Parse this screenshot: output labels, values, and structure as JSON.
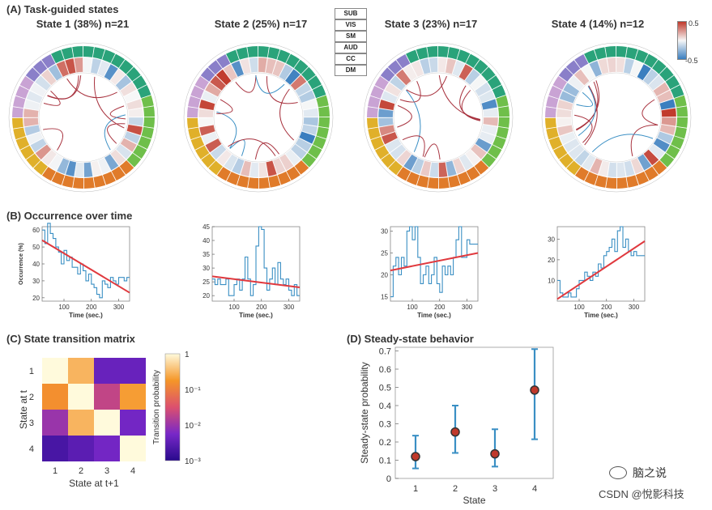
{
  "panels": {
    "a": "(A) Task-guided states",
    "b": "(B) Occurrence over time",
    "c": "(C) State transition matrix",
    "d": "(D) Steady-state behavior"
  },
  "states": [
    {
      "title": "State 1 (38%) n=21"
    },
    {
      "title": "State 2 (25%) n=17"
    },
    {
      "title": "State 3 (23%) n=17"
    },
    {
      "title": "State 4 (14%) n=12"
    }
  ],
  "network_legend": [
    {
      "label": "SUB",
      "color": "#c9a3d4"
    },
    {
      "label": "VIS",
      "color": "#6fbf4a"
    },
    {
      "label": "SM",
      "color": "#e07b2a"
    },
    {
      "label": "AUD",
      "color": "#8a7fc9"
    },
    {
      "label": "CC",
      "color": "#2aa37a"
    },
    {
      "label": "DM",
      "color": "#e0b02a"
    }
  ],
  "colorbar": {
    "max": "0.5",
    "min": "-0.5",
    "high_color": "#c0392b",
    "low_color": "#3a7ebf"
  },
  "chart_data": [
    {
      "type": "line",
      "title": "Occurrence over time - State 1",
      "xlabel": "Time (sec.)",
      "ylabel": "Occurrence (%)",
      "xlim": [
        20,
        340
      ],
      "ylim": [
        18,
        62
      ],
      "xticks": [
        "100",
        "200",
        "300"
      ],
      "yticks": [
        "20",
        "30",
        "40",
        "50",
        "60"
      ],
      "series": [
        {
          "name": "occurrence",
          "color": "#3a8fc4",
          "x": [
            20,
            30,
            40,
            50,
            60,
            70,
            80,
            90,
            100,
            110,
            120,
            130,
            140,
            150,
            160,
            170,
            180,
            190,
            200,
            210,
            220,
            230,
            240,
            250,
            260,
            270,
            280,
            290,
            300,
            310,
            320,
            330
          ],
          "values": [
            60,
            52,
            64,
            58,
            55,
            50,
            47,
            40,
            48,
            42,
            44,
            38,
            38,
            34,
            40,
            36,
            30,
            34,
            28,
            26,
            22,
            20,
            30,
            28,
            26,
            32,
            30,
            28,
            32,
            32,
            30,
            32
          ]
        },
        {
          "name": "trend",
          "color": "#e0393e",
          "x": [
            20,
            340
          ],
          "values": [
            54,
            23
          ]
        }
      ]
    },
    {
      "type": "line",
      "title": "Occurrence over time - State 2",
      "xlabel": "Time (sec.)",
      "ylabel": "",
      "xlim": [
        20,
        340
      ],
      "ylim": [
        18,
        45
      ],
      "xticks": [
        "100",
        "200",
        "300"
      ],
      "yticks": [
        "20",
        "25",
        "30",
        "35",
        "40",
        "45"
      ],
      "series": [
        {
          "name": "occurrence",
          "color": "#3a8fc4",
          "x": [
            20,
            30,
            40,
            50,
            60,
            70,
            80,
            90,
            100,
            110,
            120,
            130,
            140,
            150,
            160,
            170,
            180,
            190,
            200,
            210,
            220,
            230,
            240,
            250,
            260,
            270,
            280,
            290,
            300,
            310,
            320,
            330
          ],
          "values": [
            26,
            24,
            26,
            24,
            24,
            26,
            20,
            20,
            24,
            26,
            22,
            26,
            34,
            26,
            20,
            24,
            38,
            45,
            44,
            30,
            22,
            26,
            30,
            24,
            32,
            26,
            24,
            26,
            22,
            20,
            24,
            20
          ]
        },
        {
          "name": "trend",
          "color": "#e0393e",
          "x": [
            20,
            340
          ],
          "values": [
            27,
            23
          ]
        }
      ]
    },
    {
      "type": "line",
      "title": "Occurrence over time - State 3",
      "xlabel": "Time (sec.)",
      "ylabel": "",
      "xlim": [
        20,
        340
      ],
      "ylim": [
        14,
        31
      ],
      "xticks": [
        "100",
        "200",
        "300"
      ],
      "yticks": [
        "15",
        "20",
        "25",
        "30"
      ],
      "series": [
        {
          "name": "occurrence",
          "color": "#3a8fc4",
          "x": [
            20,
            30,
            40,
            50,
            60,
            70,
            80,
            90,
            100,
            110,
            120,
            130,
            140,
            150,
            160,
            170,
            180,
            190,
            200,
            210,
            220,
            230,
            240,
            250,
            260,
            270,
            280,
            290,
            300,
            310,
            320,
            330
          ],
          "values": [
            15,
            22,
            24,
            20,
            24,
            22,
            30,
            31,
            28,
            31,
            24,
            18,
            20,
            22,
            18,
            20,
            24,
            18,
            16,
            22,
            20,
            22,
            20,
            24,
            28,
            31,
            24,
            24,
            28,
            27,
            27,
            27
          ]
        },
        {
          "name": "trend",
          "color": "#e0393e",
          "x": [
            20,
            340
          ],
          "values": [
            21,
            25
          ]
        }
      ]
    },
    {
      "type": "line",
      "title": "Occurrence over time - State 4",
      "xlabel": "Time (sec.)",
      "ylabel": "",
      "xlim": [
        20,
        340
      ],
      "ylim": [
        0,
        36
      ],
      "xticks": [
        "100",
        "200",
        "300"
      ],
      "yticks": [
        "10",
        "20",
        "30"
      ],
      "series": [
        {
          "name": "occurrence",
          "color": "#3a8fc4",
          "x": [
            20,
            30,
            40,
            50,
            60,
            70,
            80,
            90,
            100,
            110,
            120,
            130,
            140,
            150,
            160,
            170,
            180,
            190,
            200,
            210,
            220,
            230,
            240,
            250,
            260,
            270,
            280,
            290,
            300,
            310,
            320,
            330
          ],
          "values": [
            10,
            4,
            2,
            2,
            4,
            2,
            2,
            6,
            10,
            10,
            14,
            12,
            10,
            14,
            12,
            18,
            16,
            22,
            24,
            26,
            30,
            24,
            34,
            36,
            26,
            30,
            24,
            22,
            24,
            22,
            22,
            22
          ]
        },
        {
          "name": "trend",
          "color": "#e0393e",
          "x": [
            20,
            340
          ],
          "values": [
            1,
            29
          ]
        }
      ]
    },
    {
      "type": "heatmap",
      "title": "State transition matrix",
      "xlabel": "State at t+1",
      "ylabel": "State at t",
      "categories": [
        "1",
        "2",
        "3",
        "4"
      ],
      "values": [
        [
          1.0,
          0.3,
          0.004,
          0.004
        ],
        [
          0.15,
          1.0,
          0.02,
          0.2
        ],
        [
          0.01,
          0.3,
          1.0,
          0.005
        ],
        [
          0.002,
          0.003,
          0.005,
          1.0
        ]
      ],
      "colorbar_label": "Transition probability",
      "colorbar_ticks": [
        "1",
        "10⁻¹",
        "10⁻²",
        "10⁻³"
      ]
    },
    {
      "type": "scatter",
      "title": "Steady-state behavior",
      "xlabel": "State",
      "ylabel": "Steady-state probability",
      "categories": [
        "1",
        "2",
        "3",
        "4"
      ],
      "values": [
        0.12,
        0.255,
        0.135,
        0.485
      ],
      "lower": [
        0.055,
        0.14,
        0.065,
        0.215
      ],
      "upper": [
        0.235,
        0.4,
        0.27,
        0.71
      ],
      "ylim": [
        0,
        0.72
      ],
      "yticks": [
        "0",
        "0.1",
        "0.2",
        "0.3",
        "0.4",
        "0.5",
        "0.6",
        "0.7"
      ]
    }
  ],
  "watermark": {
    "brand": "脑之说",
    "credit": "CSDN @悅影科技"
  }
}
